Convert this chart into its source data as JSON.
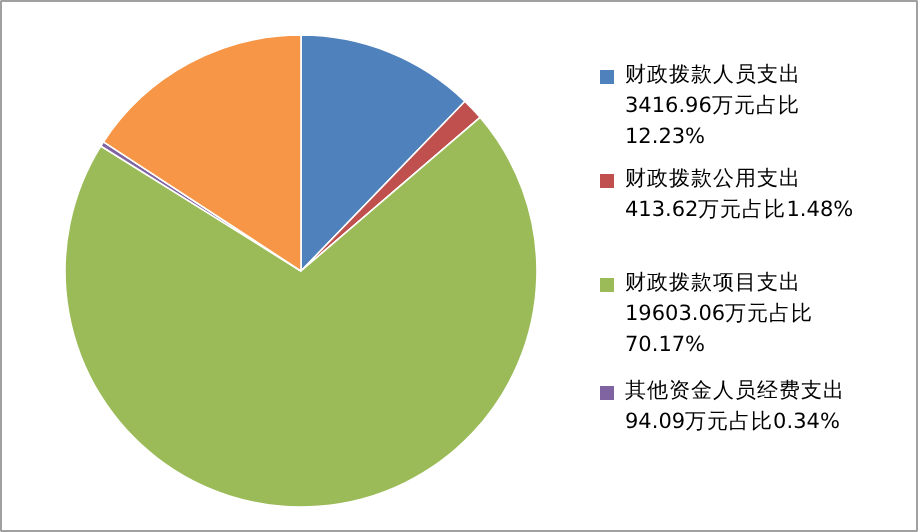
{
  "chart_data": {
    "type": "pie",
    "categories": [
      "财政拨款人员支出\n3416.96万元占比\n12.23%",
      "财政拨款公用支出\n413.62万元占比1.48%",
      "财政拨款项目支出\n19603.06万元占比\n70.17%",
      "其他资金人员经费支出\n94.09万元占比0.34%",
      null
    ],
    "values": [
      12.23,
      1.48,
      70.17,
      0.34,
      15.78
    ],
    "colors": [
      "#4f81bd",
      "#c0504d",
      "#9bbb59",
      "#8064a2",
      "#f79646"
    ],
    "legend": "right"
  }
}
